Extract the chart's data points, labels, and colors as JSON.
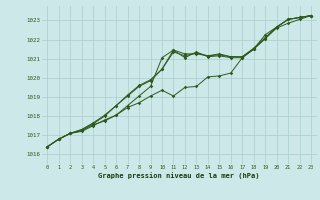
{
  "x": [
    0,
    1,
    2,
    3,
    4,
    5,
    6,
    7,
    8,
    9,
    10,
    11,
    12,
    13,
    14,
    15,
    16,
    17,
    18,
    19,
    20,
    21,
    22,
    23
  ],
  "line1": [
    1016.4,
    1016.8,
    1017.1,
    1017.25,
    1017.55,
    1017.75,
    1018.05,
    1018.45,
    1018.7,
    1019.05,
    1019.35,
    1019.05,
    1019.5,
    1019.55,
    1020.05,
    1020.1,
    1020.25,
    1021.05,
    1021.5,
    1022.05,
    1022.6,
    1022.85,
    1023.05,
    1023.25
  ],
  "line2": [
    1016.4,
    1016.8,
    1017.1,
    1017.2,
    1017.5,
    1017.8,
    1018.05,
    1018.55,
    1019.05,
    1019.55,
    1021.05,
    1021.45,
    1021.05,
    1021.35,
    1021.1,
    1021.15,
    1021.05,
    1021.05,
    1021.5,
    1022.25,
    1022.65,
    1023.05,
    1023.15,
    1023.25
  ],
  "line3": [
    1016.4,
    1016.8,
    1017.1,
    1017.3,
    1017.6,
    1018.0,
    1018.55,
    1019.05,
    1019.55,
    1019.85,
    1020.45,
    1021.45,
    1021.25,
    1021.25,
    1021.15,
    1021.25,
    1021.1,
    1021.1,
    1021.5,
    1022.05,
    1022.65,
    1023.05,
    1023.15,
    1023.25
  ],
  "line4": [
    1016.4,
    1016.8,
    1017.1,
    1017.3,
    1017.65,
    1018.05,
    1018.55,
    1019.1,
    1019.6,
    1019.9,
    1020.45,
    1021.35,
    1021.15,
    1021.3,
    1021.15,
    1021.2,
    1021.1,
    1021.1,
    1021.55,
    1022.1,
    1022.65,
    1023.05,
    1023.15,
    1023.25
  ],
  "ylim": [
    1015.5,
    1023.75
  ],
  "yticks": [
    1016,
    1017,
    1018,
    1019,
    1020,
    1021,
    1022,
    1023
  ],
  "xticks": [
    0,
    1,
    2,
    3,
    4,
    5,
    6,
    7,
    8,
    9,
    10,
    11,
    12,
    13,
    14,
    15,
    16,
    17,
    18,
    19,
    20,
    21,
    22,
    23
  ],
  "line_color": "#2d5a1b",
  "bg_color": "#cce8e8",
  "grid_color": "#aacece",
  "xlabel": "Graphe pression niveau de la mer (hPa)",
  "xlabel_color": "#1a3a10",
  "marker": "D",
  "marker_size": 1.8,
  "linewidth": 0.7
}
